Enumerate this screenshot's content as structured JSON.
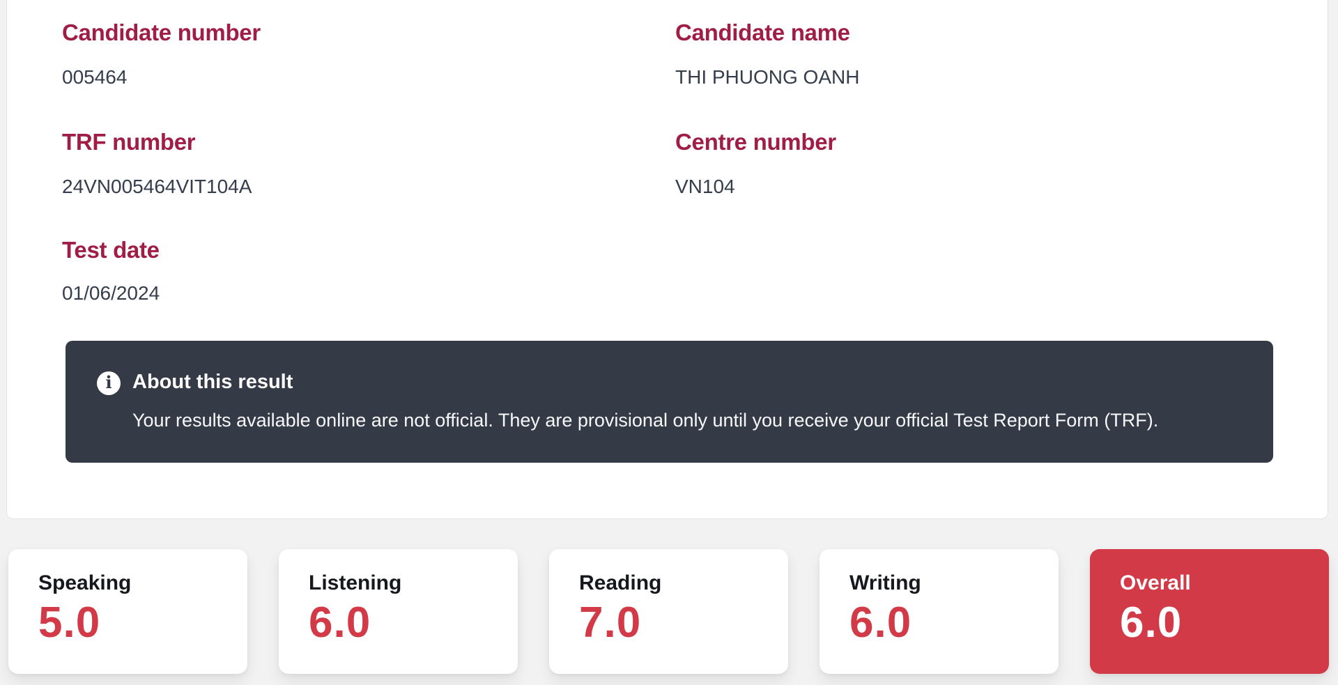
{
  "colors": {
    "page_background": "#f2f2f3",
    "label_maroon": "#a01d46",
    "value_text": "#343d4c",
    "info_banner_background": "#343a46",
    "score_red": "#d23a47"
  },
  "details": {
    "fields": [
      {
        "label": "Candidate number",
        "value": "005464"
      },
      {
        "label": "Candidate name",
        "value": "THI PHUONG OANH"
      },
      {
        "label": "TRF number",
        "value": "24VN005464VIT104A"
      },
      {
        "label": "Centre number",
        "value": "VN104"
      },
      {
        "label": "Test date",
        "value": "01/06/2024"
      }
    ]
  },
  "info_box": {
    "icon_glyph": "i",
    "title": "About this result",
    "body": "Your results available online are not official. They are provisional only until you receive your official Test Report Form (TRF)."
  },
  "scores": {
    "cards": [
      {
        "label": "Speaking",
        "value": "5.0"
      },
      {
        "label": "Listening",
        "value": "6.0"
      },
      {
        "label": "Reading",
        "value": "7.0"
      },
      {
        "label": "Writing",
        "value": "6.0"
      },
      {
        "label": "Overall",
        "value": "6.0"
      }
    ]
  }
}
